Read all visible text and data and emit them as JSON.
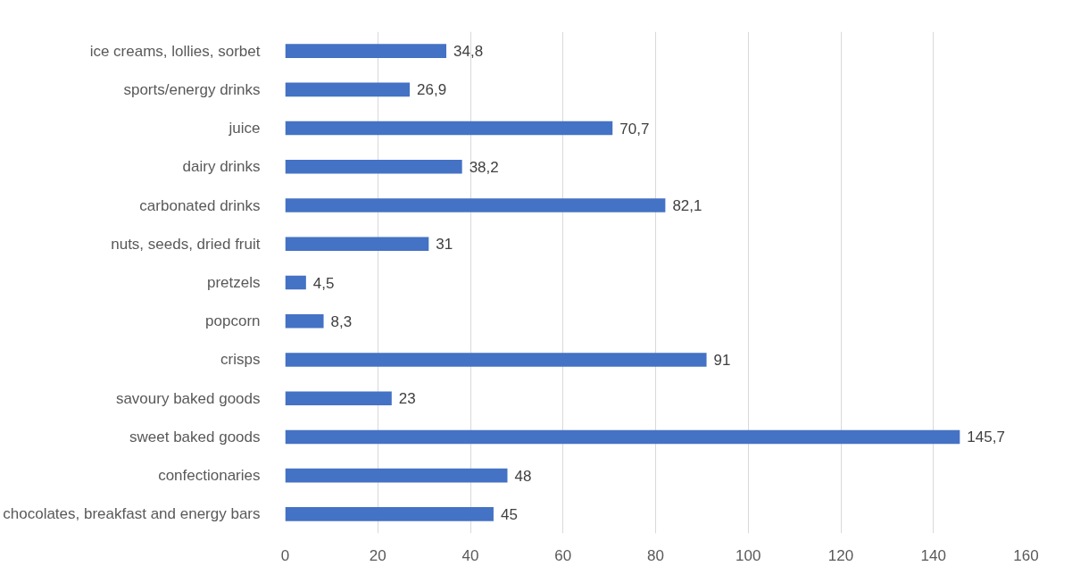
{
  "chart_data": {
    "type": "bar",
    "orientation": "horizontal",
    "categories": [
      "ice creams, lollies, sorbet",
      "sports/energy drinks",
      "juice",
      "dairy drinks",
      "carbonated drinks",
      "nuts, seeds, dried fruit",
      "pretzels",
      "popcorn",
      "crisps",
      "savoury baked goods",
      "sweet baked goods",
      "confectionaries",
      "chocolates, breakfast and energy bars"
    ],
    "values": [
      34.8,
      26.9,
      70.7,
      38.2,
      82.1,
      31,
      4.5,
      8.3,
      91,
      23,
      145.7,
      48,
      45
    ],
    "value_labels": [
      "34,8",
      "26,9",
      "70,7",
      "38,2",
      "82,1",
      "31",
      "4,5",
      "8,3",
      "91",
      "23",
      "145,7",
      "48",
      "45"
    ],
    "color": "#4472c4",
    "xlim": [
      0,
      160
    ],
    "xticks": [
      0,
      20,
      40,
      60,
      80,
      100,
      120,
      140,
      160
    ],
    "grid": "x"
  }
}
